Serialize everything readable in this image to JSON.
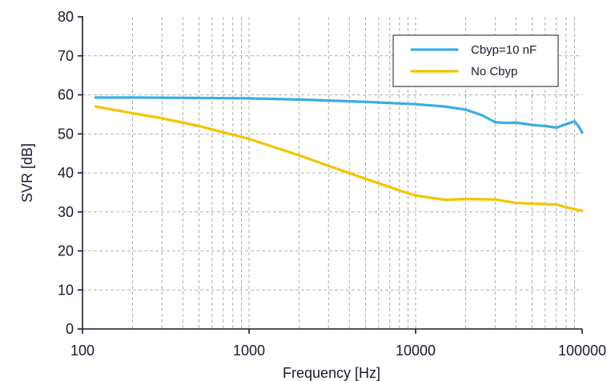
{
  "chart_data": {
    "type": "line",
    "xlabel": "Frequency [Hz]",
    "ylabel": "SVR [dB]",
    "x_scale": "log",
    "xlim": [
      100,
      100000
    ],
    "ylim": [
      0,
      80
    ],
    "x_ticks": [
      100,
      1000,
      10000,
      100000
    ],
    "x_tick_labels": [
      "100",
      "1000",
      "10000",
      "100000"
    ],
    "y_ticks": [
      0,
      10,
      20,
      30,
      40,
      50,
      60,
      70,
      80
    ],
    "y_tick_labels": [
      "0",
      "10",
      "20",
      "30",
      "40",
      "50",
      "60",
      "70",
      "80"
    ],
    "grid": true,
    "legend_position": "top-right",
    "series": [
      {
        "name": "Cbyp=10 nF",
        "color": "#3aaee0",
        "points": [
          [
            120,
            59.3
          ],
          [
            200,
            59.3
          ],
          [
            500,
            59.2
          ],
          [
            1000,
            59.1
          ],
          [
            2000,
            58.8
          ],
          [
            5000,
            58.2
          ],
          [
            10000,
            57.6
          ],
          [
            15000,
            57.0
          ],
          [
            20000,
            56.2
          ],
          [
            25000,
            54.8
          ],
          [
            30000,
            53.0
          ],
          [
            35000,
            52.8
          ],
          [
            40000,
            52.9
          ],
          [
            50000,
            52.3
          ],
          [
            60000,
            52.0
          ],
          [
            70000,
            51.6
          ],
          [
            80000,
            52.5
          ],
          [
            90000,
            53.2
          ],
          [
            95000,
            52.0
          ],
          [
            100000,
            50.3
          ]
        ]
      },
      {
        "name": "No Cbyp",
        "color": "#f5c400",
        "points": [
          [
            120,
            57.0
          ],
          [
            200,
            55.3
          ],
          [
            300,
            54.0
          ],
          [
            500,
            52.0
          ],
          [
            1000,
            48.7
          ],
          [
            2000,
            44.5
          ],
          [
            3000,
            41.8
          ],
          [
            5000,
            38.5
          ],
          [
            8000,
            35.5
          ],
          [
            10000,
            34.2
          ],
          [
            15000,
            33.1
          ],
          [
            20000,
            33.3
          ],
          [
            30000,
            33.2
          ],
          [
            40000,
            32.3
          ],
          [
            60000,
            32.0
          ],
          [
            70000,
            31.9
          ],
          [
            80000,
            31.2
          ],
          [
            100000,
            30.3
          ]
        ]
      }
    ]
  }
}
